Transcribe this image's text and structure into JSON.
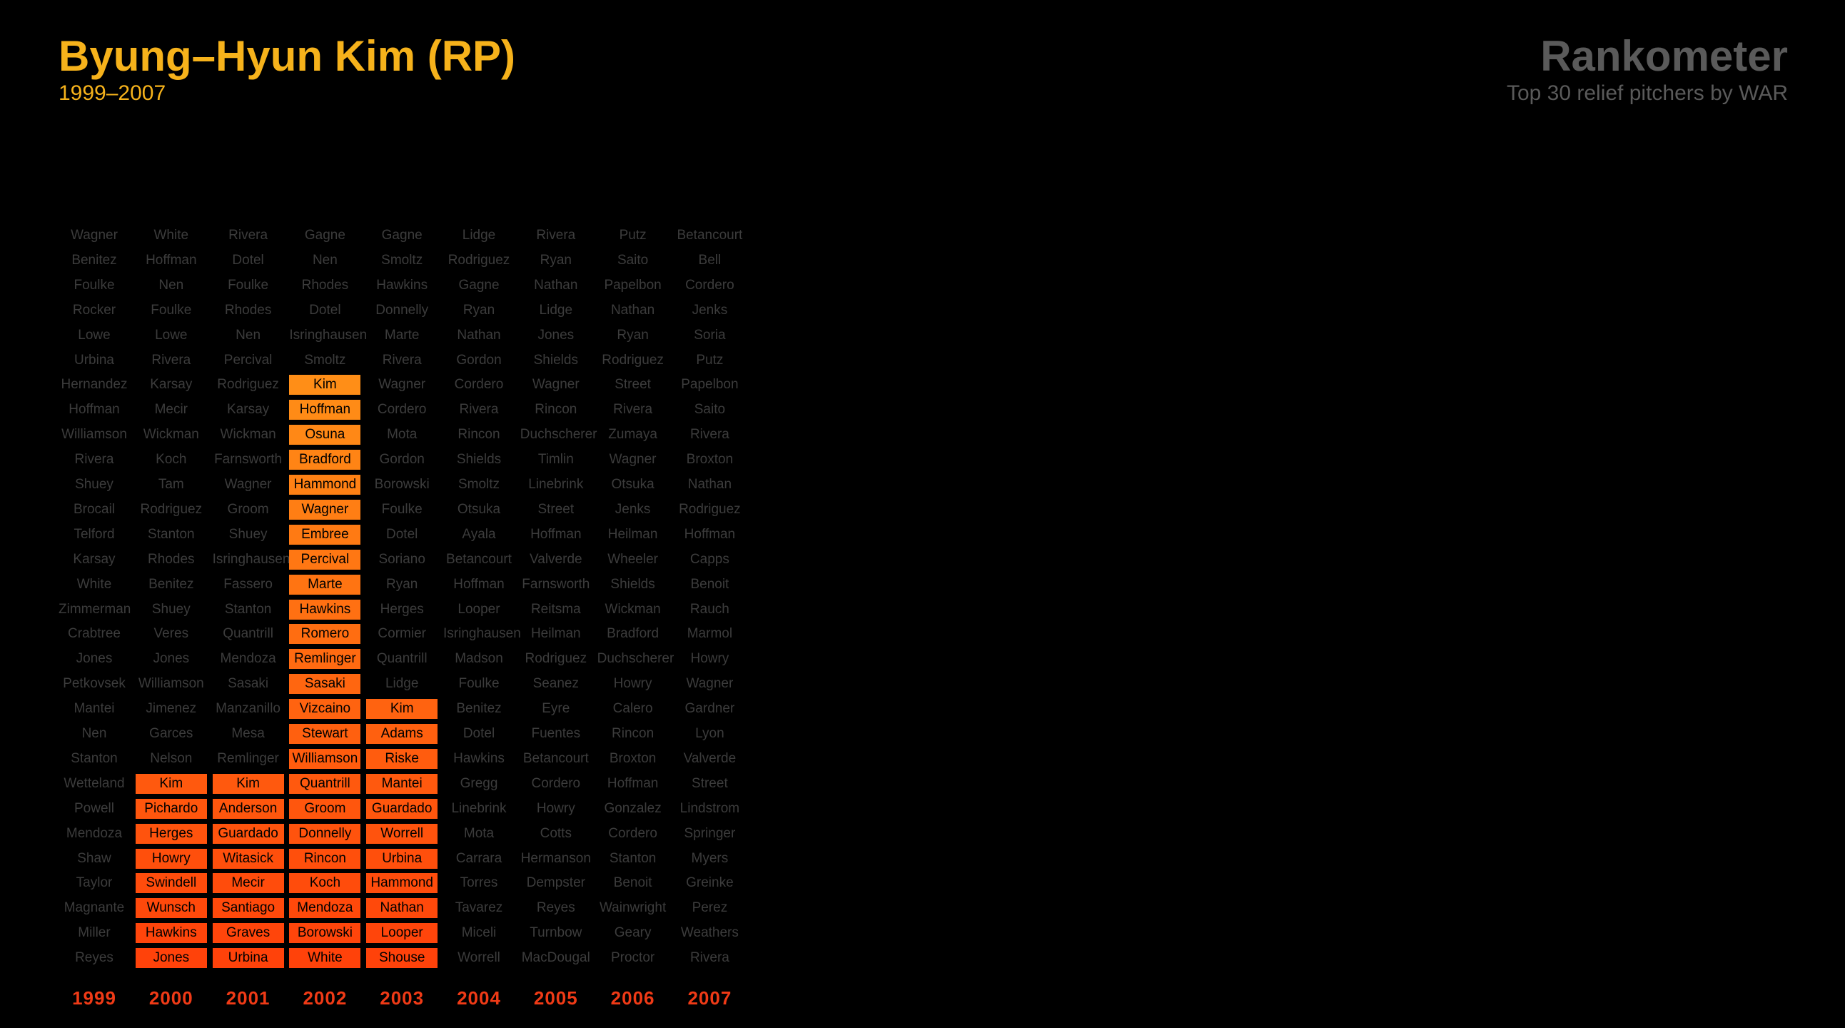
{
  "header": {
    "title": "Byung–Hyun Kim (RP)",
    "subtitle": "1999–2007",
    "brand": "Rankometer",
    "brand_subtitle": "Top 30 relief pitchers by WAR"
  },
  "colors": {
    "background": "#000000",
    "title": "#f6b21b",
    "brand": "#5a5a5a",
    "dim_text": "#3c3c3c",
    "year_label": "#ef3a16",
    "highlight_top": "#ffa21a",
    "highlight_bottom": "#ff420a"
  },
  "chart_data": {
    "type": "table",
    "highlighted_player": "Kim",
    "ranks_count": 30,
    "columns": [
      {
        "year": "1999",
        "names": [
          "Wagner",
          "Benitez",
          "Foulke",
          "Rocker",
          "Lowe",
          "Urbina",
          "Hernandez",
          "Hoffman",
          "Williamson",
          "Rivera",
          "Shuey",
          "Brocail",
          "Telford",
          "Karsay",
          "White",
          "Zimmerman",
          "Crabtree",
          "Jones",
          "Petkovsek",
          "Mantei",
          "Nen",
          "Stanton",
          "Wetteland",
          "Powell",
          "Mendoza",
          "Shaw",
          "Taylor",
          "Magnante",
          "Miller",
          "Reyes"
        ],
        "highlight": []
      },
      {
        "year": "2000",
        "names": [
          "White",
          "Hoffman",
          "Nen",
          "Foulke",
          "Lowe",
          "Rivera",
          "Karsay",
          "Mecir",
          "Wickman",
          "Koch",
          "Tam",
          "Rodriguez",
          "Stanton",
          "Rhodes",
          "Benitez",
          "Shuey",
          "Veres",
          "Jones",
          "Williamson",
          "Jimenez",
          "Garces",
          "Nelson",
          "Kim",
          "Pichardo",
          "Herges",
          "Howry",
          "Swindell",
          "Wunsch",
          "Hawkins",
          "Jones"
        ],
        "highlight": [
          22,
          23,
          24,
          25,
          26,
          27,
          28,
          29
        ]
      },
      {
        "year": "2001",
        "names": [
          "Rivera",
          "Dotel",
          "Foulke",
          "Rhodes",
          "Nen",
          "Percival",
          "Rodriguez",
          "Karsay",
          "Wickman",
          "Farnsworth",
          "Wagner",
          "Groom",
          "Shuey",
          "Isringhausen",
          "Fassero",
          "Stanton",
          "Quantrill",
          "Mendoza",
          "Sasaki",
          "Manzanillo",
          "Mesa",
          "Remlinger",
          "Kim",
          "Anderson",
          "Guardado",
          "Witasick",
          "Mecir",
          "Santiago",
          "Graves",
          "Urbina"
        ],
        "highlight": [
          22,
          23,
          24,
          25,
          26,
          27,
          28,
          29
        ]
      },
      {
        "year": "2002",
        "names": [
          "Gagne",
          "Nen",
          "Rhodes",
          "Dotel",
          "Isringhausen",
          "Smoltz",
          "Kim",
          "Hoffman",
          "Osuna",
          "Bradford",
          "Hammond",
          "Wagner",
          "Embree",
          "Percival",
          "Marte",
          "Hawkins",
          "Romero",
          "Remlinger",
          "Sasaki",
          "Vizcaino",
          "Stewart",
          "Williamson",
          "Quantrill",
          "Groom",
          "Donnelly",
          "Rincon",
          "Koch",
          "Mendoza",
          "Borowski",
          "White"
        ],
        "highlight": [
          6,
          7,
          8,
          9,
          10,
          11,
          12,
          13,
          14,
          15,
          16,
          17,
          18,
          19,
          20,
          21,
          22,
          23,
          24,
          25,
          26,
          27,
          28,
          29
        ]
      },
      {
        "year": "2003",
        "names": [
          "Gagne",
          "Smoltz",
          "Hawkins",
          "Donnelly",
          "Marte",
          "Rivera",
          "Wagner",
          "Cordero",
          "Mota",
          "Gordon",
          "Borowski",
          "Foulke",
          "Dotel",
          "Soriano",
          "Ryan",
          "Herges",
          "Cormier",
          "Quantrill",
          "Lidge",
          "Kim",
          "Adams",
          "Riske",
          "Mantei",
          "Guardado",
          "Worrell",
          "Urbina",
          "Hammond",
          "Nathan",
          "Looper",
          "Shouse"
        ],
        "highlight": [
          19,
          20,
          21,
          22,
          23,
          24,
          25,
          26,
          27,
          28,
          29
        ]
      },
      {
        "year": "2004",
        "names": [
          "Lidge",
          "Rodriguez",
          "Gagne",
          "Ryan",
          "Nathan",
          "Gordon",
          "Cordero",
          "Rivera",
          "Rincon",
          "Shields",
          "Smoltz",
          "Otsuka",
          "Ayala",
          "Betancourt",
          "Hoffman",
          "Looper",
          "Isringhausen",
          "Madson",
          "Foulke",
          "Benitez",
          "Dotel",
          "Hawkins",
          "Gregg",
          "Linebrink",
          "Mota",
          "Carrara",
          "Torres",
          "Tavarez",
          "Miceli",
          "Worrell"
        ],
        "highlight": []
      },
      {
        "year": "2005",
        "names": [
          "Rivera",
          "Ryan",
          "Nathan",
          "Lidge",
          "Jones",
          "Shields",
          "Wagner",
          "Rincon",
          "Duchscherer",
          "Timlin",
          "Linebrink",
          "Street",
          "Hoffman",
          "Valverde",
          "Farnsworth",
          "Reitsma",
          "Heilman",
          "Rodriguez",
          "Seanez",
          "Eyre",
          "Fuentes",
          "Betancourt",
          "Cordero",
          "Howry",
          "Cotts",
          "Hermanson",
          "Dempster",
          "Reyes",
          "Turnbow",
          "MacDougal"
        ],
        "highlight": []
      },
      {
        "year": "2006",
        "names": [
          "Putz",
          "Saito",
          "Papelbon",
          "Nathan",
          "Ryan",
          "Rodriguez",
          "Street",
          "Rivera",
          "Zumaya",
          "Wagner",
          "Otsuka",
          "Jenks",
          "Heilman",
          "Wheeler",
          "Shields",
          "Wickman",
          "Bradford",
          "Duchscherer",
          "Howry",
          "Calero",
          "Rincon",
          "Broxton",
          "Hoffman",
          "Gonzalez",
          "Cordero",
          "Stanton",
          "Benoit",
          "Wainwright",
          "Geary",
          "Proctor"
        ],
        "highlight": []
      },
      {
        "year": "2007",
        "names": [
          "Betancourt",
          "Bell",
          "Cordero",
          "Jenks",
          "Soria",
          "Putz",
          "Papelbon",
          "Saito",
          "Rivera",
          "Broxton",
          "Nathan",
          "Rodriguez",
          "Hoffman",
          "Capps",
          "Benoit",
          "Rauch",
          "Marmol",
          "Howry",
          "Wagner",
          "Gardner",
          "Lyon",
          "Valverde",
          "Street",
          "Lindstrom",
          "Springer",
          "Myers",
          "Greinke",
          "Perez",
          "Weathers",
          "Rivera"
        ],
        "highlight": []
      }
    ]
  }
}
